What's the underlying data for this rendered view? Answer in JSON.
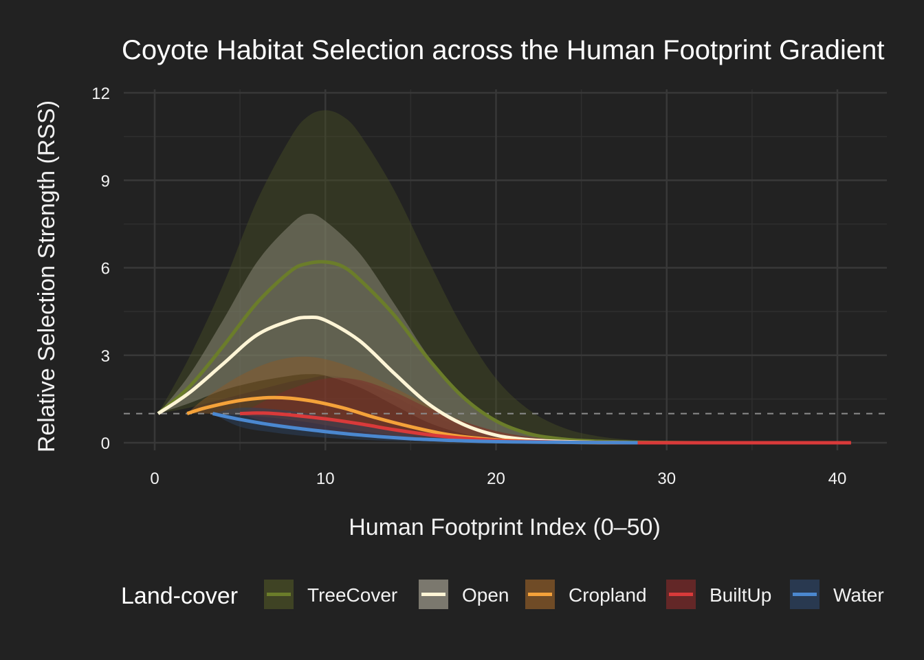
{
  "chart_data": {
    "type": "line",
    "title": "Coyote Habitat Selection across the Human Footprint Gradient",
    "xlabel": "Human Footprint Index (0–50)",
    "ylabel": "Relative Selection Strength (RSS)",
    "xlim": [
      -2,
      43
    ],
    "ylim": [
      -0.6,
      12
    ],
    "x_ticks": [
      0,
      10,
      20,
      30,
      40
    ],
    "y_ticks": [
      0,
      3,
      6,
      9,
      12
    ],
    "grid": true,
    "reference_line": {
      "y": 1,
      "style": "dashed"
    },
    "legend": {
      "title": "Land-cover",
      "position": "bottom"
    },
    "series": [
      {
        "name": "TreeCover",
        "color": "#6b7d2a",
        "ribbon_color": "#4a4f26",
        "ribbon_opacity": 0.45,
        "x": [
          0.2,
          2,
          4,
          6,
          8,
          9,
          10,
          11,
          12,
          14,
          16,
          18,
          20,
          22,
          24,
          26,
          28,
          30,
          32,
          35,
          39
        ],
        "y": [
          1.0,
          1.9,
          3.3,
          4.8,
          5.9,
          6.15,
          6.2,
          6.05,
          5.6,
          4.4,
          2.9,
          1.6,
          0.75,
          0.3,
          0.12,
          0.05,
          0.02,
          0.01,
          0.0,
          0.0,
          0.0
        ],
        "lower": [
          1.0,
          1.2,
          1.5,
          1.8,
          2.1,
          2.2,
          2.3,
          2.25,
          2.1,
          1.6,
          1.0,
          0.55,
          0.25,
          0.1,
          0.04,
          0.02,
          0.01,
          0.0,
          0.0,
          0.0,
          0.0
        ],
        "upper": [
          1.0,
          2.9,
          5.4,
          8.3,
          10.5,
          11.2,
          11.4,
          11.2,
          10.6,
          8.7,
          6.3,
          4.0,
          2.2,
          1.1,
          0.5,
          0.22,
          0.1,
          0.05,
          0.02,
          0.0,
          0.0
        ]
      },
      {
        "name": "Open",
        "color": "#fff5d6",
        "ribbon_color": "#9a9688",
        "ribbon_opacity": 0.45,
        "x": [
          0.2,
          2,
          4,
          6,
          8,
          9,
          10,
          12,
          14,
          16,
          18,
          20,
          22,
          24,
          26,
          28
        ],
        "y": [
          1.0,
          1.7,
          2.7,
          3.7,
          4.2,
          4.3,
          4.2,
          3.5,
          2.4,
          1.35,
          0.65,
          0.26,
          0.1,
          0.04,
          0.01,
          0.0
        ],
        "lower": [
          1.0,
          1.35,
          1.8,
          2.1,
          2.3,
          2.35,
          2.3,
          1.9,
          1.3,
          0.7,
          0.32,
          0.12,
          0.04,
          0.01,
          0.0,
          0.0
        ],
        "upper": [
          1.0,
          2.3,
          4.2,
          6.2,
          7.5,
          7.85,
          7.6,
          6.5,
          4.8,
          3.0,
          1.6,
          0.75,
          0.3,
          0.12,
          0.04,
          0.01
        ]
      },
      {
        "name": "Cropland",
        "color": "#f4a23a",
        "ribbon_color": "#8a5a28",
        "ribbon_opacity": 0.5,
        "x": [
          1.9,
          3,
          5,
          7,
          9,
          11,
          13,
          15,
          17,
          19,
          21,
          23,
          25,
          27,
          29,
          39.2
        ],
        "y": [
          1.0,
          1.2,
          1.45,
          1.55,
          1.45,
          1.2,
          0.85,
          0.55,
          0.3,
          0.15,
          0.07,
          0.03,
          0.01,
          0.0,
          0.0,
          0.0
        ],
        "lower": [
          1.0,
          1.0,
          0.95,
          0.85,
          0.7,
          0.5,
          0.32,
          0.18,
          0.09,
          0.04,
          0.02,
          0.01,
          0.0,
          0.0,
          0.0,
          0.0
        ],
        "upper": [
          1.0,
          1.55,
          2.3,
          2.8,
          2.95,
          2.7,
          2.2,
          1.6,
          1.0,
          0.55,
          0.28,
          0.12,
          0.05,
          0.02,
          0.0,
          0.0
        ]
      },
      {
        "name": "BuiltUp",
        "color": "#d93a3a",
        "ribbon_color": "#7a2a2a",
        "ribbon_opacity": 0.5,
        "x": [
          5,
          6,
          7,
          8,
          10,
          12,
          14,
          16,
          18,
          20,
          22,
          24,
          26,
          28,
          30,
          35,
          40.8
        ],
        "y": [
          1.0,
          1.02,
          1.0,
          0.95,
          0.82,
          0.65,
          0.45,
          0.28,
          0.16,
          0.08,
          0.04,
          0.02,
          0.01,
          0.0,
          0.0,
          0.0,
          0.0
        ],
        "lower": [
          1.0,
          0.8,
          0.65,
          0.55,
          0.4,
          0.28,
          0.18,
          0.1,
          0.05,
          0.02,
          0.01,
          0.0,
          0.0,
          0.0,
          0.0,
          0.0,
          0.0
        ],
        "upper": [
          1.0,
          1.3,
          1.6,
          1.85,
          2.2,
          2.15,
          1.75,
          1.2,
          0.75,
          0.4,
          0.2,
          0.1,
          0.05,
          0.02,
          0.0,
          0.0,
          0.0
        ]
      },
      {
        "name": "Water",
        "color": "#4b88d0",
        "ribbon_color": "#2c4260",
        "ribbon_opacity": 0.5,
        "x": [
          3.4,
          5,
          7,
          9,
          11,
          13,
          15,
          17,
          19,
          21,
          23,
          25,
          28.3
        ],
        "y": [
          1.0,
          0.8,
          0.6,
          0.45,
          0.32,
          0.22,
          0.14,
          0.09,
          0.05,
          0.03,
          0.02,
          0.01,
          0.0
        ],
        "lower": [
          1.0,
          0.55,
          0.35,
          0.22,
          0.14,
          0.08,
          0.05,
          0.03,
          0.01,
          0.0,
          0.0,
          0.0,
          0.0
        ],
        "upper": [
          1.0,
          1.2,
          1.15,
          1.0,
          0.75,
          0.55,
          0.38,
          0.24,
          0.15,
          0.09,
          0.05,
          0.02,
          0.0
        ]
      }
    ]
  }
}
